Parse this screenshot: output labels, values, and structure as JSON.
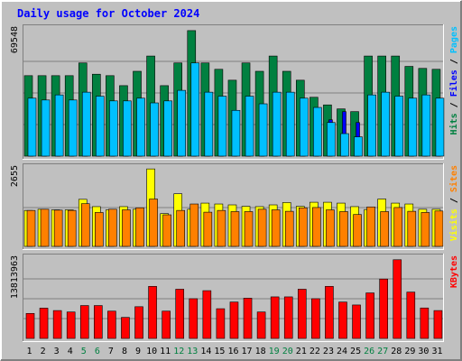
{
  "chart_data": {
    "type": "bar",
    "title": "Daily usage for October 2024",
    "categories": [
      "1",
      "2",
      "3",
      "4",
      "5",
      "6",
      "7",
      "8",
      "9",
      "10",
      "11",
      "12",
      "13",
      "14",
      "15",
      "16",
      "17",
      "18",
      "19",
      "20",
      "21",
      "22",
      "23",
      "24",
      "25",
      "26",
      "27",
      "28",
      "29",
      "30",
      "31"
    ],
    "weekend_days": [
      "5",
      "6",
      "12",
      "13",
      "19",
      "20",
      "26",
      "27"
    ],
    "panels": [
      {
        "name": "hits-files-pages",
        "max_label": "69548",
        "ylim": [
          0,
          69548
        ],
        "side_labels": [
          {
            "text": "Hits",
            "color": "#008040"
          },
          {
            "text": " / ",
            "color": "#000000"
          },
          {
            "text": "Files",
            "color": "#0000ff"
          },
          {
            "text": " / ",
            "color": "#000000"
          },
          {
            "text": "Pages",
            "color": "#00c0ff"
          }
        ],
        "series": [
          {
            "name": "Hits",
            "color": "#008040",
            "values": [
              44300,
              44300,
              44300,
              44300,
              51300,
              45100,
              44300,
              38800,
              46700,
              55100,
              38800,
              51300,
              69100,
              51300,
              47800,
              41800,
              51300,
              46700,
              55100,
              46700,
              41800,
              32400,
              28200,
              26000,
              24500,
              55100,
              55100,
              55100,
              49400,
              48300,
              47800
            ]
          },
          {
            "name": "Files",
            "color": "#0000ff",
            "values": [
              20000,
              20000,
              20000,
              20000,
              20000,
              20000,
              20000,
              20000,
              20000,
              20000,
              20000,
              20000,
              20000,
              20000,
              20000,
              20000,
              20000,
              20000,
              20000,
              20000,
              20000,
              20000,
              20000,
              24500,
              18500,
              20000,
              20000,
              20000,
              20000,
              20000,
              20000
            ]
          },
          {
            "name": "Pages",
            "color": "#00c0ff",
            "values": [
              31900,
              30900,
              33700,
              30900,
              35200,
              33000,
              30400,
              30400,
              31900,
              29300,
              30400,
              36200,
              51300,
              35200,
              33000,
              25200,
              33000,
              28800,
              35200,
              35200,
              31900,
              26800,
              18500,
              12400,
              10600,
              33700,
              35200,
              33000,
              31900,
              33700,
              31900
            ]
          }
        ]
      },
      {
        "name": "visits-sites",
        "max_label": "2655",
        "ylim": [
          0,
          2655
        ],
        "side_labels": [
          {
            "text": "Visits",
            "color": "#ffff00"
          },
          {
            "text": " / ",
            "color": "#000000"
          },
          {
            "text": "Sites",
            "color": "#ff8000"
          }
        ],
        "series": [
          {
            "name": "Visits",
            "color": "#ffff00",
            "values": [
              1230,
              1270,
              1250,
              1250,
              1610,
              1360,
              1250,
              1360,
              1270,
              2650,
              1120,
              1800,
              1270,
              1480,
              1450,
              1420,
              1370,
              1360,
              1420,
              1500,
              1370,
              1510,
              1510,
              1480,
              1360,
              1260,
              1620,
              1480,
              1450,
              1270,
              1270
            ]
          },
          {
            "name": "Sites",
            "color": "#ff8000",
            "values": [
              1230,
              1270,
              1240,
              1230,
              1460,
              1160,
              1270,
              1250,
              1320,
              1620,
              1080,
              1230,
              1450,
              1170,
              1230,
              1190,
              1190,
              1270,
              1250,
              1200,
              1320,
              1330,
              1250,
              1190,
              1090,
              1350,
              1190,
              1330,
              1200,
              1160,
              1210
            ]
          }
        ]
      },
      {
        "name": "kbytes",
        "max_label": "13813963",
        "ylim": [
          0,
          13813963
        ],
        "side_labels": [
          {
            "text": "KBytes",
            "color": "#ff0000"
          }
        ],
        "series": [
          {
            "name": "KBytes",
            "color": "#ff0000",
            "values": [
              4350000,
              5270000,
              4850000,
              4600000,
              5720000,
              5720000,
              4750000,
              3660000,
              5520000,
              9060000,
              4750000,
              8560000,
              6910000,
              8310000,
              5170000,
              6330000,
              7000000,
              4600000,
              7230000,
              7230000,
              8560000,
              6910000,
              9060000,
              6330000,
              5820000,
              7920000,
              10330000,
              13690000,
              8060000,
              5300000,
              4850000
            ]
          }
        ]
      }
    ]
  }
}
